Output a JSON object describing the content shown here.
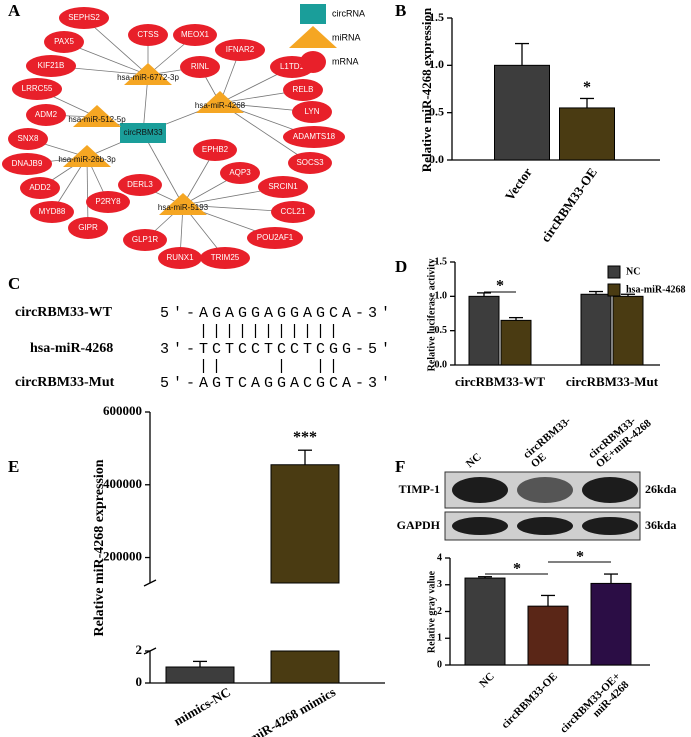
{
  "panel_letters": [
    "A",
    "B",
    "C",
    "D",
    "E",
    "F"
  ],
  "network": {
    "legend": [
      {
        "label": "circRNA",
        "color": "#1a9e9a",
        "shape": "rect",
        "nodes": [
          "circRBM33"
        ]
      },
      {
        "label": "miRNA",
        "color": "#f5a623",
        "shape": "triangle",
        "nodes": [
          "hsa-miR-6772-3p",
          "hsa-miR-4268",
          "hsa-miR-512-5p",
          "hsa-miR-26b-3p",
          "hsa-miR-5193"
        ]
      },
      {
        "label": "mRNA",
        "color": "#e8202a",
        "shape": "ellipse",
        "nodes": [
          "SEPHS2",
          "CTSS",
          "MEOX1",
          "PAX5",
          "IFNAR2",
          "KIF21B",
          "RINL",
          "L1TD1",
          "LRRC55",
          "RELB",
          "ADM2",
          "LYN",
          "SNX8",
          "ADAMTS18",
          "DNAJB9",
          "EPHB2",
          "AQP3",
          "SOCS3",
          "ADD2",
          "DERL3",
          "P2RY8",
          "SRCIN1",
          "MYD88",
          "CCL21",
          "GIPR",
          "POU2AF1",
          "GLP1R",
          "TRIM25",
          "RUNX1"
        ]
      }
    ]
  },
  "alignment": {
    "rows": [
      {
        "label": "circRBM33-WT",
        "sequence": "5'-AGAGGAGGAGCA-3'"
      },
      {
        "label": "hsa-miR-4268",
        "sequence": "3'-TCTCCTCCTCGG-5'"
      },
      {
        "label": "circRBM33-Mut",
        "sequence": "5'-AGTCAGGACGCA-3'"
      }
    ],
    "pairings": [
      "   |||||||||||    ",
      "   ||    |  ||    "
    ]
  },
  "blot": {
    "lanes": [
      [
        "NC"
      ],
      [
        "circRBM33-",
        "OE"
      ],
      [
        "circRBM33-",
        "OE+miR-4268"
      ]
    ],
    "rows": [
      {
        "label": "TIMP-1",
        "size": "26kda"
      },
      {
        "label": "GAPDH",
        "size": "36kda"
      }
    ]
  },
  "chart_data": [
    {
      "type": "bar",
      "y_label": "Relative miR-4268 expression",
      "categories": [
        "Vector",
        "circRBM33-OE"
      ],
      "values": [
        1.0,
        0.55
      ],
      "errors": [
        0.23,
        0.1
      ],
      "colors": [
        "#3d3d3d",
        "#4a3b12"
      ],
      "ylim": [
        0,
        1.5
      ],
      "yticks": [
        {
          "value": 0,
          "label": "0.0"
        },
        0.5,
        {
          "value": 1,
          "label": "1.0"
        },
        1.5
      ],
      "annotations": [
        "*"
      ]
    },
    {
      "type": "grouped_bar",
      "y_label": "Relative luciferase activity",
      "categories": [
        "circRBM33-WT",
        "circRBM33-Mut"
      ],
      "series": [
        {
          "name": "NC",
          "color": "#3d3d3d",
          "values": [
            1.0,
            1.03
          ],
          "errors": [
            0.05,
            0.04
          ]
        },
        {
          "name": "hsa-miR-4268",
          "color": "#4a3b12",
          "values": [
            0.65,
            1.0
          ],
          "errors": [
            0.04,
            0.03
          ]
        }
      ],
      "ylim": [
        0,
        1.5
      ],
      "yticks": [
        {
          "value": 0,
          "label": "0.0"
        },
        0.5,
        {
          "value": 1,
          "label": "1.0"
        },
        1.5
      ],
      "legend": "upper right",
      "annotations": [
        "*"
      ]
    },
    {
      "type": "broken_bar",
      "y_label": "Relative miR-4268 expression",
      "categories": [
        "mimics-NC",
        "miR-4268 mimics"
      ],
      "values": [
        1,
        455000
      ],
      "errors": [
        0.35,
        40000
      ],
      "colors": [
        "#3d3d3d",
        "#4a3b12"
      ],
      "ylim": [
        0,
        2
      ],
      "yticks": [
        0,
        2
      ],
      "break": {
        "ylim": [
          130000,
          600000
        ],
        "yticks": [
          200000,
          400000,
          600000
        ]
      },
      "annotations": [
        "***"
      ]
    },
    {
      "type": "bar",
      "y_label": "Relative gray value",
      "categories": [
        [
          "NC"
        ],
        [
          "circRBM33-OE"
        ],
        [
          "circRBM33-OE+",
          "miR-4268"
        ]
      ],
      "values": [
        3.25,
        2.2,
        3.05
      ],
      "errors": [
        0.05,
        0.4,
        0.35
      ],
      "colors": [
        "#3d3d3d",
        "#5a2617",
        "#2b0d45"
      ],
      "ylim": [
        0,
        4
      ],
      "yticks": [
        0,
        1,
        2,
        3,
        4
      ],
      "annotations": [
        "*",
        "*"
      ]
    }
  ]
}
